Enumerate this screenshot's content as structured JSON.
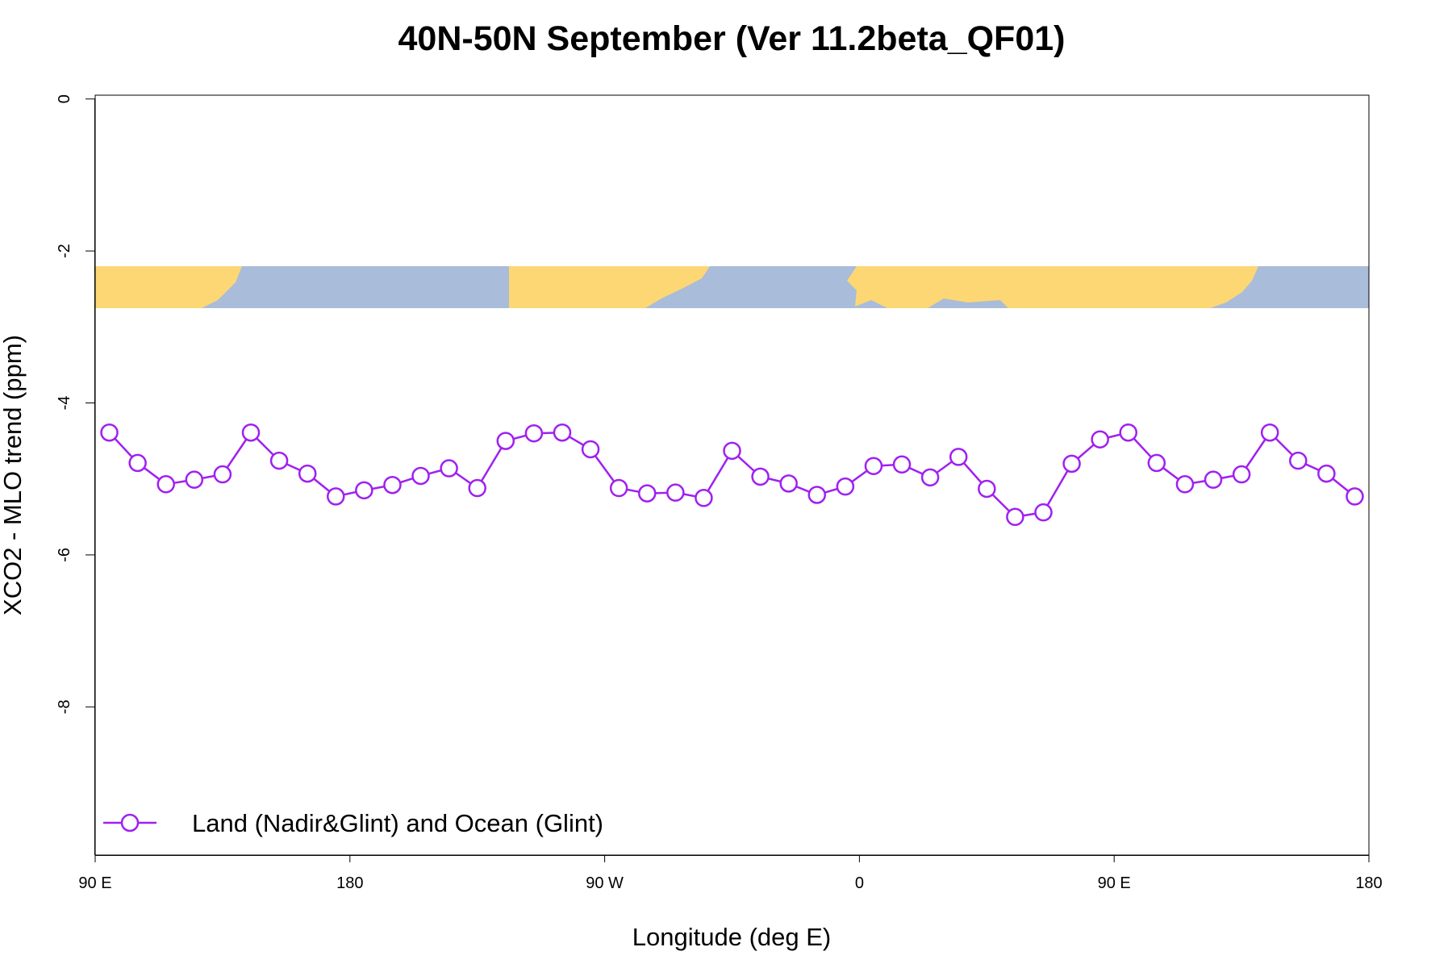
{
  "chart_data": {
    "type": "line",
    "title": "40N-50N September (Ver 11.2beta_QF01)",
    "x_label": "Longitude (deg E)",
    "y_label": "XCO2 - MLO trend (ppm)",
    "xlim": [
      90,
      540
    ],
    "ylim": [
      -9.95,
      0.05
    ],
    "xticks": [
      {
        "value": 90,
        "label": "90 E"
      },
      180,
      {
        "value": 270,
        "label": "90 W"
      },
      {
        "value": 360,
        "label": "0"
      },
      {
        "value": 450,
        "label": "90 E"
      },
      {
        "value": 540,
        "label": "180"
      }
    ],
    "yticks": [
      0,
      -2,
      -4,
      -6,
      -8
    ],
    "legend": "bottom-left",
    "x": [
      95,
      105,
      115,
      125,
      135,
      145,
      155,
      165,
      175,
      185,
      195,
      205,
      215,
      225,
      235,
      245,
      255,
      265,
      275,
      285,
      295,
      305,
      315,
      325,
      335,
      345,
      355,
      365,
      375,
      385,
      395,
      405,
      415,
      425,
      435,
      445,
      455,
      465,
      475,
      485,
      495,
      505,
      515,
      525,
      535
    ],
    "series": [
      {
        "name": "Land (Nadir&Glint) and Ocean (Glint)",
        "color": "#a020f0",
        "values": [
          -4.39,
          -4.79,
          -5.07,
          -5.01,
          -4.94,
          -4.39,
          -4.76,
          -4.93,
          -5.23,
          -5.15,
          -5.08,
          -4.96,
          -4.86,
          -5.12,
          -4.5,
          -4.4,
          -4.39,
          -4.61,
          -5.12,
          -5.19,
          -5.18,
          -5.25,
          -4.63,
          -4.97,
          -5.06,
          -5.21,
          -5.1,
          -4.83,
          -4.81,
          -4.98,
          -4.71,
          -5.13,
          -5.5,
          -5.44,
          -4.8,
          -4.48,
          -4.39,
          -4.79,
          -5.07,
          -5.01,
          -4.94,
          -4.39,
          -4.76,
          -4.93,
          -5.23
        ]
      }
    ]
  }
}
